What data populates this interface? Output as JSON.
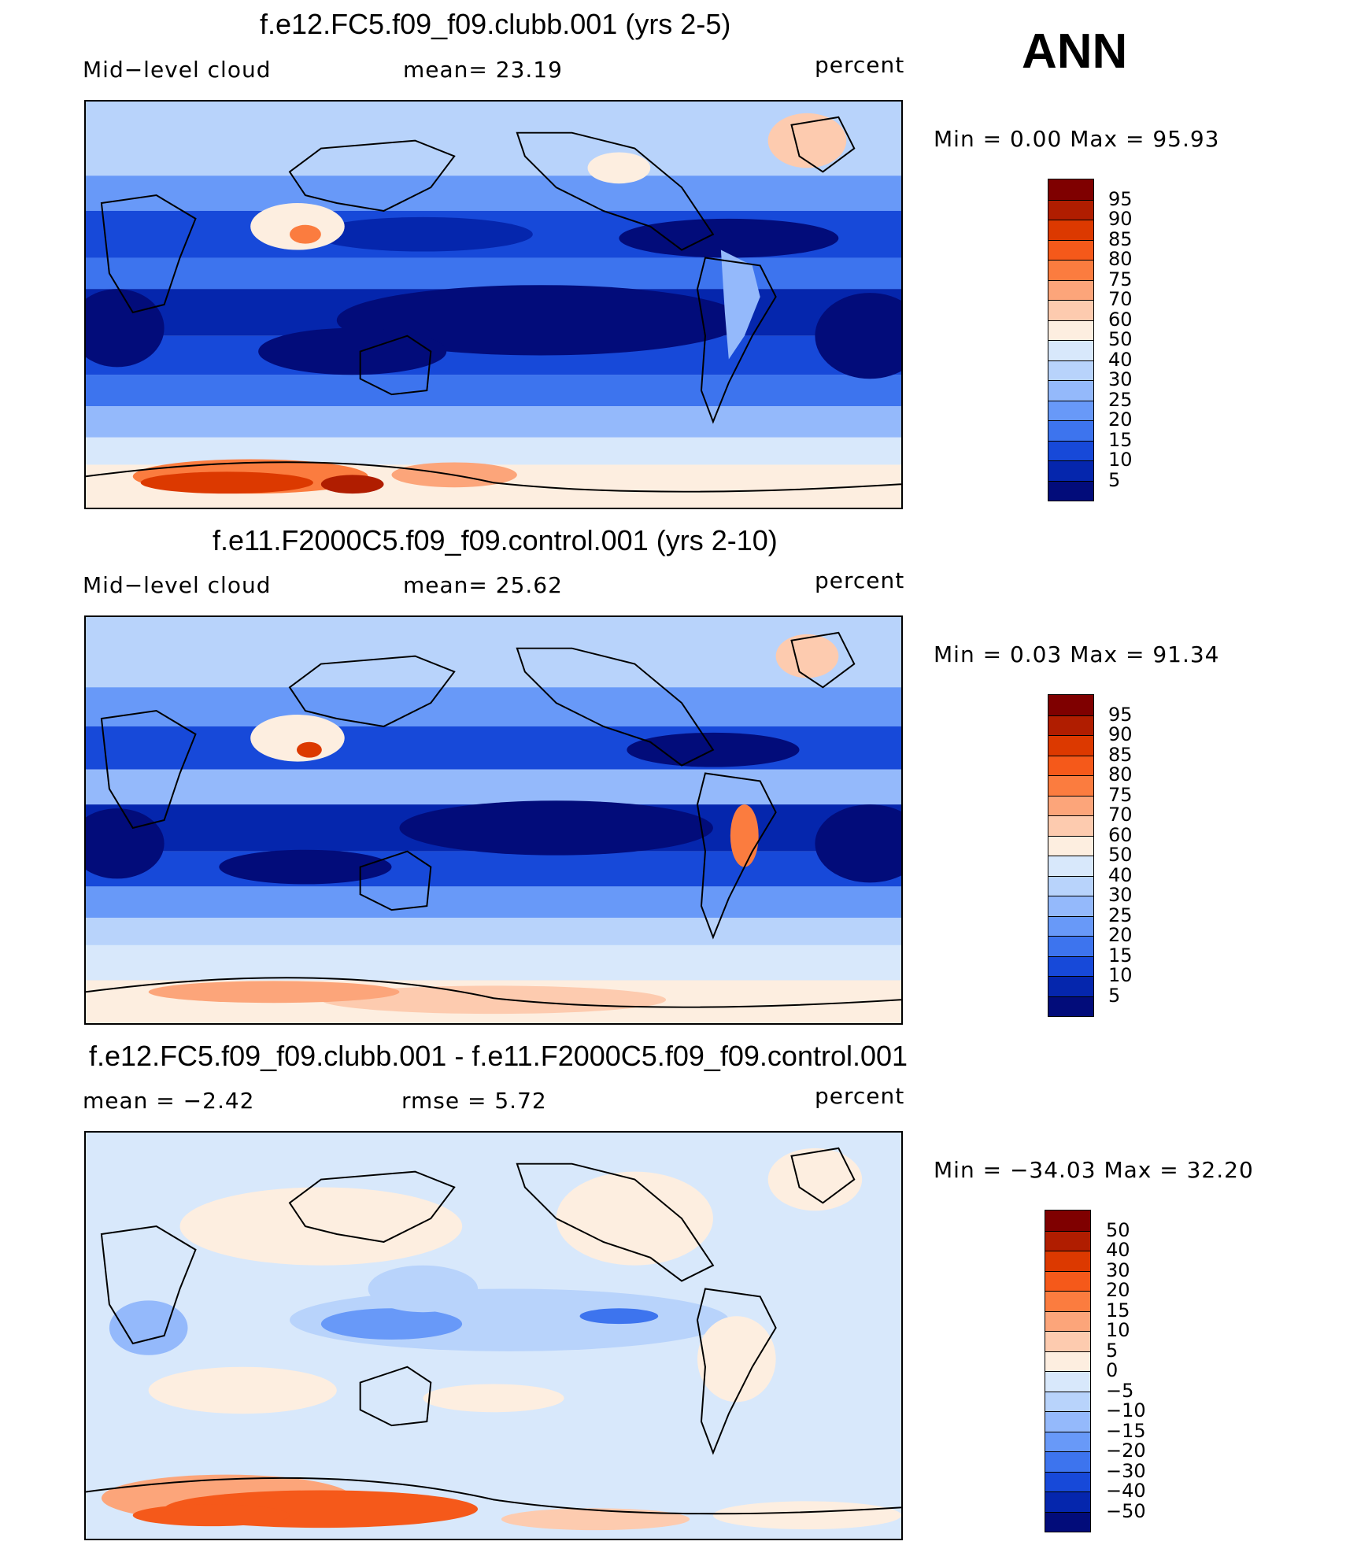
{
  "season": "ANN",
  "panels": [
    {
      "title": "f.e12.FC5.f09_f09.clubb.001 (yrs 2-5)",
      "left_label": "Mid−level  cloud",
      "center_label": "mean=   23.19",
      "units": "percent",
      "minmax": "Min  =     0.00  Max  =    95.93",
      "kind": "field"
    },
    {
      "title": "f.e11.F2000C5.f09_f09.control.001 (yrs 2-10)",
      "left_label": "Mid−level  cloud",
      "center_label": "mean=   25.62",
      "units": "percent",
      "minmax": "Min  =     0.03  Max  =    91.34",
      "kind": "field"
    },
    {
      "title": "f.e12.FC5.f09_f09.clubb.001 - f.e11.F2000C5.f09_f09.control.001",
      "left_label": "mean  =    −2.42",
      "center_label": "rmse  =     5.72",
      "units": "percent",
      "minmax": "Min  = −34.03  Max  =    32.20",
      "kind": "diff"
    }
  ],
  "colorbars": {
    "field": {
      "labels": [
        "95",
        "90",
        "85",
        "80",
        "75",
        "70",
        "60",
        "50",
        "40",
        "30",
        "25",
        "20",
        "15",
        "10",
        "5"
      ],
      "colors": [
        "#7f0000",
        "#b01d00",
        "#dc3900",
        "#f5591a",
        "#fb7c3f",
        "#fca57a",
        "#fdcbaf",
        "#fdeee0",
        "#d8e8fb",
        "#b8d3fb",
        "#94b9fb",
        "#6899f8",
        "#3d74ee",
        "#1749d9",
        "#0526ad",
        "#020c7a"
      ]
    },
    "diff": {
      "labels": [
        "50",
        "40",
        "30",
        "20",
        "15",
        "10",
        "5",
        "0",
        "−5",
        "−10",
        "−15",
        "−20",
        "−30",
        "−40",
        "−50"
      ],
      "colors": [
        "#7f0000",
        "#b01d00",
        "#dc3900",
        "#f5591a",
        "#fb7c3f",
        "#fca57a",
        "#fdcbaf",
        "#fdeee0",
        "#d8e8fb",
        "#b8d3fb",
        "#94b9fb",
        "#6899f8",
        "#3d74ee",
        "#1749d9",
        "#0526ad",
        "#020c7a"
      ]
    }
  }
}
